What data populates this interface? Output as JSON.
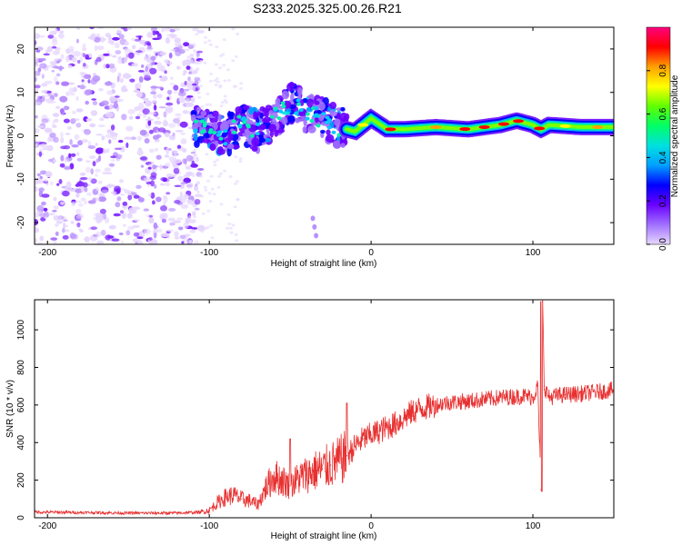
{
  "title": "S233.2025.325.00.26.R21",
  "chart_data": [
    {
      "type": "heatmap",
      "id": "spectrogram",
      "xlabel": "Height of straight line (km)",
      "ylabel": "Frequency (Hz)",
      "xlim": [
        -208,
        150
      ],
      "ylim": [
        -25,
        25
      ],
      "xticks": [
        -200,
        -100,
        0,
        100
      ],
      "yticks": [
        -20,
        -10,
        0,
        10,
        20
      ],
      "colorbar": {
        "label": "Normalized spectral amplitude",
        "range": [
          0,
          1
        ],
        "ticks": [
          0.0,
          0.2,
          0.4,
          0.6,
          0.8
        ],
        "colormap": [
          "#e8d8ff",
          "#a070ff",
          "#6a00ff",
          "#0000ff",
          "#00a0ff",
          "#00e0e0",
          "#00ff66",
          "#60ff00",
          "#ffff00",
          "#ffa000",
          "#ff0000",
          "#ff007f"
        ]
      },
      "regions": [
        {
          "name": "noise",
          "x": [
            -208,
            -105
          ],
          "f": [
            -25,
            25
          ],
          "amplitude": 0.25
        },
        {
          "name": "scattered",
          "x": [
            -110,
            -15
          ],
          "f": [
            -6,
            10
          ],
          "amplitude": 0.35
        },
        {
          "name": "carrier",
          "x": [
            -15,
            150
          ],
          "f": [
            0.5,
            3.5
          ],
          "amplitude": 0.6
        }
      ],
      "ridge": [
        {
          "x": -110,
          "f": 2
        },
        {
          "x": -100,
          "f": 2
        },
        {
          "x": -90,
          "f": 0
        },
        {
          "x": -80,
          "f": 3
        },
        {
          "x": -70,
          "f": 1
        },
        {
          "x": -60,
          "f": 4
        },
        {
          "x": -50,
          "f": 8
        },
        {
          "x": -40,
          "f": 5
        },
        {
          "x": -30,
          "f": 4
        },
        {
          "x": -20,
          "f": 2
        },
        {
          "x": -10,
          "f": 1
        },
        {
          "x": 0,
          "f": 4
        },
        {
          "x": 10,
          "f": 1.5
        },
        {
          "x": 20,
          "f": 1.5
        },
        {
          "x": 40,
          "f": 2
        },
        {
          "x": 60,
          "f": 1.5
        },
        {
          "x": 80,
          "f": 2.5
        },
        {
          "x": 90,
          "f": 3.5
        },
        {
          "x": 100,
          "f": 2.5
        },
        {
          "x": 105,
          "f": 1.5
        },
        {
          "x": 110,
          "f": 2.5
        },
        {
          "x": 130,
          "f": 2
        },
        {
          "x": 150,
          "f": 2
        }
      ]
    },
    {
      "type": "line",
      "id": "snr",
      "xlabel": "Height of straight line (km)",
      "ylabel": "SNR (10 * v/v)",
      "xlim": [
        -208,
        150
      ],
      "ylim": [
        0,
        1160
      ],
      "xticks": [
        -200,
        -100,
        0,
        100
      ],
      "yticks": [
        0,
        200,
        400,
        600,
        800,
        1000
      ],
      "color": "#e83030",
      "series": [
        {
          "name": "SNR",
          "x": [
            -208,
            -180,
            -150,
            -120,
            -105,
            -100,
            -95,
            -90,
            -85,
            -80,
            -75,
            -70,
            -65,
            -60,
            -55,
            -50,
            -45,
            -40,
            -35,
            -30,
            -25,
            -20,
            -15,
            -10,
            -5,
            0,
            5,
            10,
            15,
            20,
            25,
            30,
            35,
            40,
            45,
            50,
            60,
            70,
            80,
            90,
            95,
            100,
            103,
            105,
            106,
            107,
            110,
            115,
            120,
            130,
            140,
            150
          ],
          "values": [
            30,
            28,
            25,
            25,
            30,
            40,
            80,
            110,
            120,
            100,
            90,
            70,
            160,
            220,
            200,
            170,
            210,
            230,
            250,
            260,
            280,
            300,
            330,
            380,
            420,
            440,
            460,
            480,
            500,
            530,
            560,
            580,
            590,
            600,
            610,
            615,
            620,
            630,
            640,
            645,
            650,
            640,
            700,
            150,
            1150,
            700,
            640,
            650,
            655,
            660,
            670,
            680
          ]
        }
      ],
      "spikes": [
        {
          "x": -50,
          "value": 420
        },
        {
          "x": -15,
          "value": 610
        },
        {
          "x": 105,
          "value": 1150
        },
        {
          "x": 105.5,
          "value": 140
        }
      ]
    }
  ]
}
